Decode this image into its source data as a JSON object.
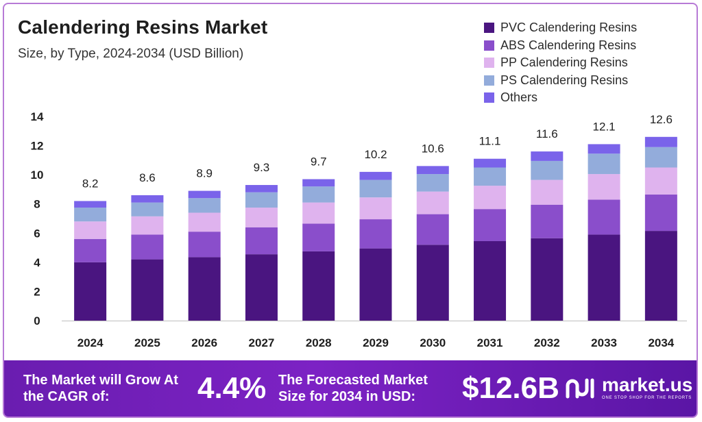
{
  "title": "Calendering Resins Market",
  "subtitle": "Size, by Type, 2024-2034 (USD Billion)",
  "chart_data": {
    "type": "bar",
    "stacked": true,
    "categories": [
      "2024",
      "2025",
      "2026",
      "2027",
      "2028",
      "2029",
      "2030",
      "2031",
      "2032",
      "2033",
      "2034"
    ],
    "ylim": [
      0,
      14
    ],
    "yticks": [
      0,
      2,
      4,
      6,
      8,
      10,
      12,
      14
    ],
    "totals": [
      8.2,
      8.6,
      8.9,
      9.3,
      9.7,
      10.2,
      10.6,
      11.1,
      11.6,
      12.1,
      12.6
    ],
    "series": [
      {
        "name": "PVC Calendering Resins",
        "color": "#4a1580",
        "values": [
          4.0,
          4.2,
          4.35,
          4.55,
          4.75,
          4.95,
          5.2,
          5.45,
          5.65,
          5.9,
          6.15
        ]
      },
      {
        "name": "ABS Calendering Resins",
        "color": "#8a4ecb",
        "values": [
          1.6,
          1.7,
          1.75,
          1.85,
          1.9,
          2.0,
          2.1,
          2.2,
          2.3,
          2.4,
          2.5
        ]
      },
      {
        "name": "PP Calendering Resins",
        "color": "#dfb3ee",
        "values": [
          1.2,
          1.25,
          1.3,
          1.35,
          1.45,
          1.5,
          1.55,
          1.6,
          1.7,
          1.75,
          1.85
        ]
      },
      {
        "name": "PS Calendering Resins",
        "color": "#93acdb",
        "values": [
          0.95,
          0.95,
          1.0,
          1.05,
          1.1,
          1.2,
          1.2,
          1.25,
          1.3,
          1.4,
          1.4
        ]
      },
      {
        "name": "Others",
        "color": "#7a63ea",
        "values": [
          0.45,
          0.5,
          0.5,
          0.5,
          0.5,
          0.55,
          0.55,
          0.6,
          0.65,
          0.65,
          0.7
        ]
      }
    ],
    "xlabel": "",
    "ylabel": "",
    "legend_position": "top-right"
  },
  "footer": {
    "cagr_label": "The Market will Grow At the CAGR of:",
    "cagr_value": "4.4%",
    "size_label": "The Forecasted Market Size for 2034 in USD:",
    "size_value": "$12.6B",
    "brand_name": "market.us",
    "brand_tagline": "ONE STOP SHOP FOR THE REPORTS"
  }
}
